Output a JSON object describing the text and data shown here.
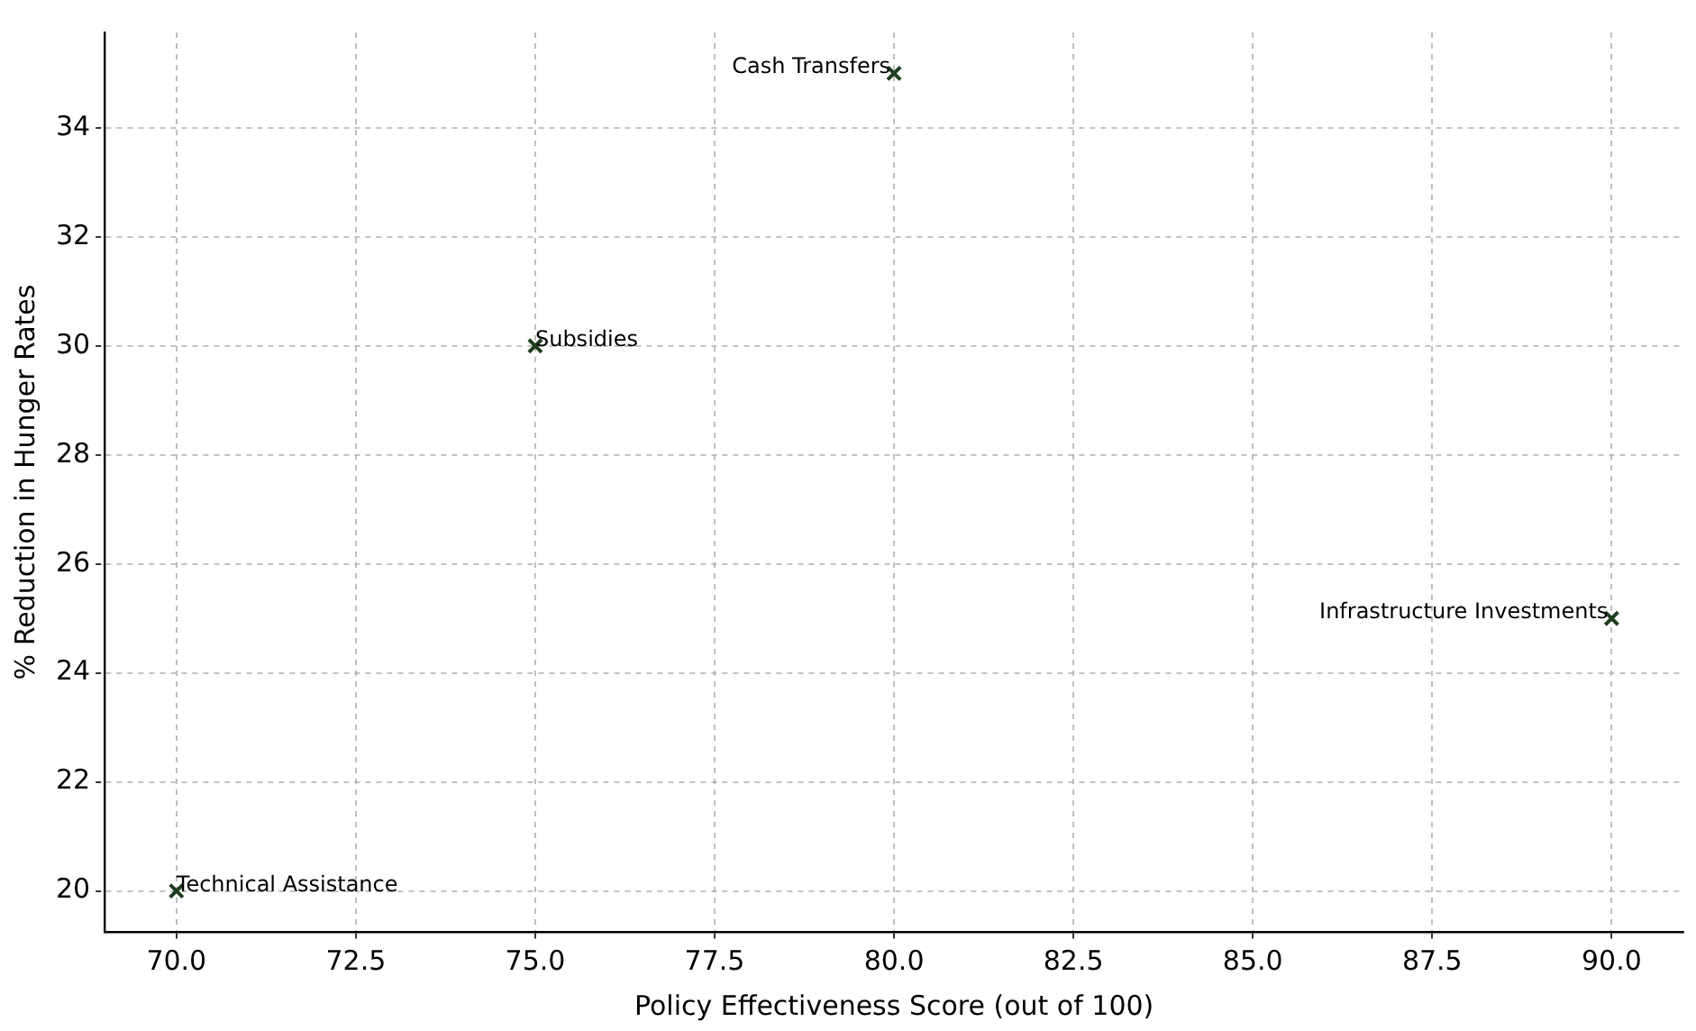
{
  "chart_data": {
    "type": "scatter",
    "xlabel": "Policy Effectiveness Score (out of 100)",
    "ylabel": "% Reduction in Hunger Rates",
    "x": [
      80,
      75,
      90,
      70
    ],
    "values": [
      35,
      30,
      25,
      20
    ],
    "color": "#1f3d1f",
    "marker": "cross",
    "xlim": [
      69,
      91
    ],
    "xticks": [
      {
        "value": 70,
        "label": "70.0"
      },
      {
        "value": 72.5,
        "label": "72.5"
      },
      {
        "value": 75,
        "label": "75.0"
      },
      {
        "value": 77.5,
        "label": "77.5"
      },
      {
        "value": 80,
        "label": "80.0"
      },
      {
        "value": 82.5,
        "label": "82.5"
      },
      {
        "value": 85,
        "label": "85.0"
      },
      {
        "value": 87.5,
        "label": "87.5"
      },
      {
        "value": 90,
        "label": "90.0"
      }
    ],
    "ylim": [
      19.25,
      35.75
    ],
    "yticks": [
      20,
      22,
      24,
      26,
      28,
      30,
      32,
      34
    ],
    "grid": true,
    "annotations": [
      {
        "text": "Cash Transfers",
        "x": 80,
        "y": 35
      },
      {
        "text": "Subsidies",
        "x": 75,
        "y": 30
      },
      {
        "text": "Infrastructure Investments",
        "x": 90,
        "y": 25
      },
      {
        "text": "Technical Assistance",
        "x": 70,
        "y": 20
      }
    ]
  }
}
